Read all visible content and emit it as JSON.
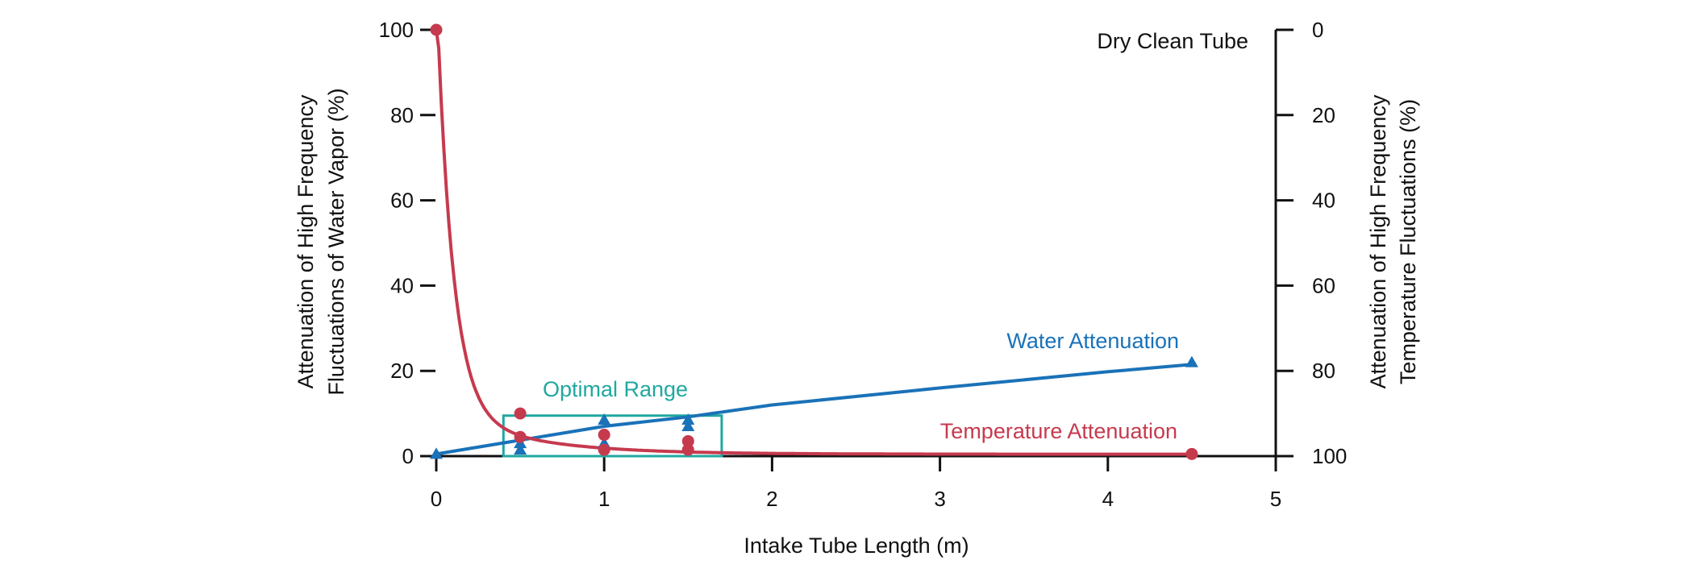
{
  "chart_data": {
    "type": "line",
    "title": "",
    "annotation": "Dry Clean Tube",
    "xlabel": "Intake Tube Length (m)",
    "ylabel_left": [
      "Attenuation of High Frequency",
      "Fluctuations of Water Vapor (%)"
    ],
    "ylabel_right": [
      "Attenuation of High Frequency",
      "Temperature Fluctuations (%)"
    ],
    "xlim": [
      0,
      5
    ],
    "ylim_left": [
      0,
      100
    ],
    "ylim_right": [
      100,
      0
    ],
    "xticks": [
      "0",
      "1",
      "2",
      "3",
      "4",
      "5"
    ],
    "yticks_left": [
      "0",
      "20",
      "40",
      "60",
      "80",
      "100"
    ],
    "yticks_right": [
      "100",
      "80",
      "60",
      "40",
      "20",
      "0"
    ],
    "grid": false,
    "optimal_range": {
      "label": "Optimal Range",
      "x": [
        0.4,
        1.7
      ],
      "y": [
        0,
        9.5
      ]
    },
    "series": [
      {
        "name": "Water Attenuation",
        "axis": "left",
        "marker": "triangle",
        "fit_line": {
          "x": [
            0,
            1,
            1.5,
            2,
            3,
            4,
            4.5
          ],
          "y": [
            0.5,
            7,
            9.2,
            12,
            16,
            19.8,
            21.5
          ]
        },
        "points": [
          {
            "x": 0.0,
            "y": 0.5
          },
          {
            "x": 0.5,
            "y": 1.5
          },
          {
            "x": 0.5,
            "y": 3.0
          },
          {
            "x": 1.0,
            "y": 3.0
          },
          {
            "x": 1.0,
            "y": 8.5
          },
          {
            "x": 1.5,
            "y": 7.0
          },
          {
            "x": 1.5,
            "y": 8.5
          },
          {
            "x": 4.5,
            "y": 22.0
          }
        ]
      },
      {
        "name": "Temperature Attenuation",
        "axis": "left",
        "marker": "circle",
        "fit_curve": "decay",
        "points": [
          {
            "x": 0.0,
            "y": 100
          },
          {
            "x": 0.5,
            "y": 10
          },
          {
            "x": 0.5,
            "y": 4.5
          },
          {
            "x": 1.0,
            "y": 5.0
          },
          {
            "x": 1.0,
            "y": 1.5
          },
          {
            "x": 1.5,
            "y": 3.5
          },
          {
            "x": 1.5,
            "y": 1.5
          },
          {
            "x": 4.5,
            "y": 0.5
          }
        ]
      }
    ]
  },
  "colors": {
    "water": "#1a72b8",
    "temperature": "#c63a4e",
    "optimal": "#1fa8a0",
    "axis": "#111111"
  }
}
